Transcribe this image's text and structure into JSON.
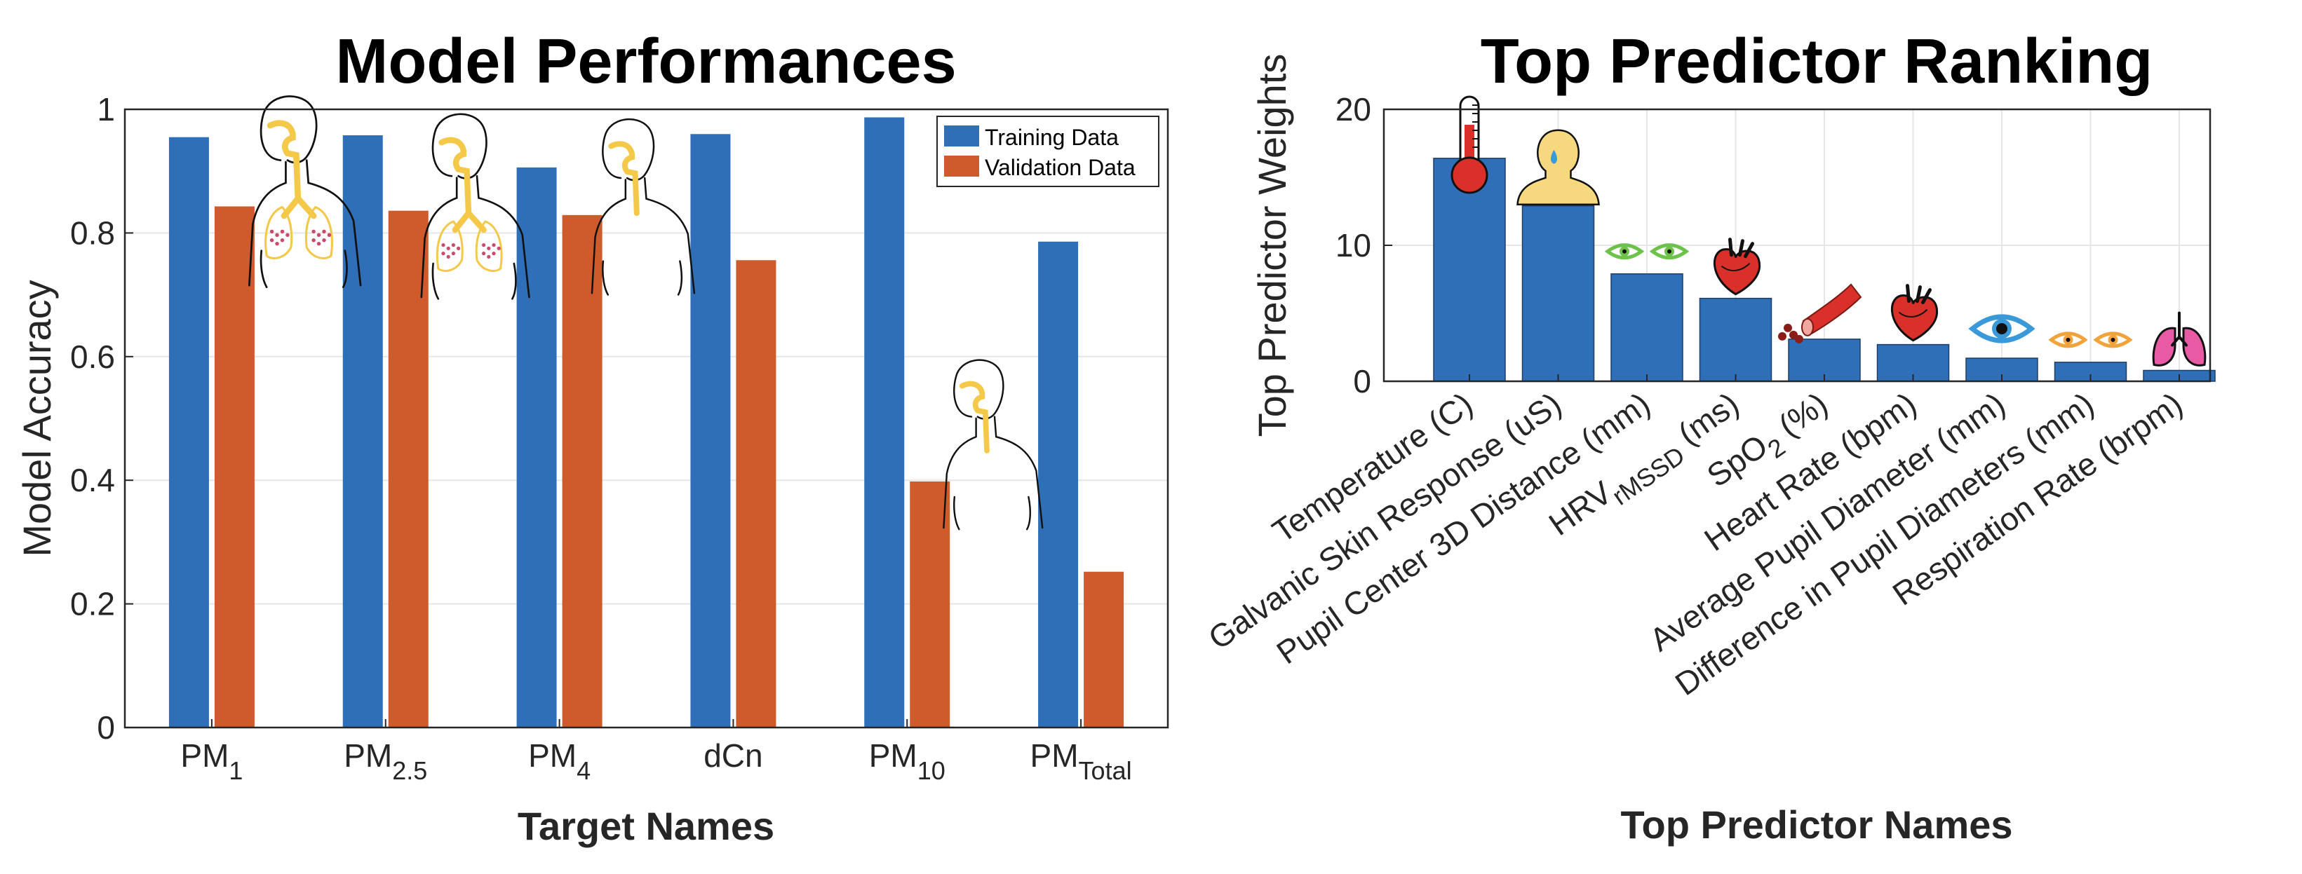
{
  "colors": {
    "training": "#2f6fb8",
    "validation": "#cf5a2c",
    "grid": "#e6e6e6",
    "axis": "#262626",
    "body_outline": "#111111",
    "airway": "#f4c94a",
    "skin": "#f6d97e",
    "eye_green": "#6cc24a",
    "eye_blue": "#3a9ad9",
    "eye_orange": "#f0a33a",
    "heart": "#d9302a",
    "lungs_pink": "#e85aa3",
    "thermo": "#d9302a"
  },
  "chart_data": [
    {
      "type": "bar",
      "title": "Model Performances",
      "xlabel": "Target Names",
      "ylabel": "Model Accuracy",
      "ylim": [
        0,
        1
      ],
      "yticks": [
        "0",
        "0.2",
        "0.4",
        "0.6",
        "0.8",
        "1"
      ],
      "categories": [
        {
          "base": "PM",
          "sub": "1"
        },
        {
          "base": "PM",
          "sub": "2.5"
        },
        {
          "base": "PM",
          "sub": "4"
        },
        {
          "base": "dCn",
          "sub": ""
        },
        {
          "base": "PM",
          "sub": "10"
        },
        {
          "base": "PM",
          "sub": "Total"
        }
      ],
      "series": [
        {
          "name": "Training Data",
          "values": [
            0.955,
            0.958,
            0.906,
            0.96,
            0.987,
            0.786
          ]
        },
        {
          "name": "Validation Data",
          "values": [
            0.843,
            0.836,
            0.829,
            0.756,
            0.398,
            0.252
          ]
        }
      ],
      "legend": "top-right",
      "grid": true
    },
    {
      "type": "bar",
      "title": "Top Predictor Ranking",
      "xlabel": "Top Predictor Names",
      "ylabel": "Top Predictor Weights",
      "ylim": [
        0,
        20
      ],
      "yticks": [
        "0",
        "10",
        "20"
      ],
      "categories": [
        {
          "label": "Temperature (C)",
          "icon": "thermometer-icon"
        },
        {
          "label": "Galvanic Skin Response (uS)",
          "icon": "sweating-head-icon"
        },
        {
          "label": "Pupil Center 3D Distance (mm)",
          "icon": "eyes-icon"
        },
        {
          "label": "HRV",
          "sub": "rMSSD",
          "tail": " (ms)",
          "icon": "heart-icon"
        },
        {
          "label": "SpO",
          "sub": "2",
          "tail": " (%)",
          "icon": "blood-vessel-icon"
        },
        {
          "label": "Heart Rate (bpm)",
          "icon": "heart-icon"
        },
        {
          "label": "Average Pupil Diameter (mm)",
          "icon": "eye-icon"
        },
        {
          "label": "Difference in Pupil Diameters (mm)",
          "icon": "eyes-icon"
        },
        {
          "label": "Respiration Rate (brpm)",
          "icon": "lungs-icon"
        }
      ],
      "values": [
        16.4,
        12.9,
        7.9,
        6.1,
        3.1,
        2.7,
        1.7,
        1.4,
        0.8
      ],
      "grid": true
    }
  ]
}
